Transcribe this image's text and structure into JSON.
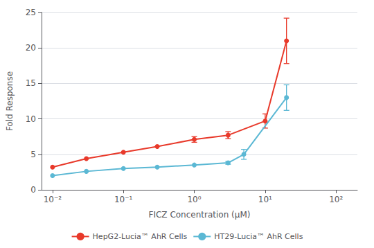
{
  "chart_data": {
    "type": "line",
    "x_label": "FICZ Concentration (μM)",
    "y_label": "Fold Response",
    "log": "x",
    "xlim": [
      0.007,
      200
    ],
    "xticks": [
      {
        "value": 0.01,
        "label": "10⁻²"
      },
      {
        "value": 0.1,
        "label": "10⁻¹"
      },
      {
        "value": 1,
        "label": "10⁰"
      },
      {
        "value": 10,
        "label": "10¹"
      },
      {
        "value": 100,
        "label": "10²"
      }
    ],
    "ylim": [
      0,
      25
    ],
    "yticks": [
      0,
      5,
      10,
      15,
      20,
      25
    ],
    "grid": true,
    "legend": "bottom",
    "marker": "circle",
    "series": [
      {
        "name": "HepG2-Lucia™ AhR Cells",
        "color": "#e8392a",
        "x": [
          0.01,
          0.03,
          0.1,
          0.3,
          1.0,
          3.0,
          10.0,
          20.0
        ],
        "values": [
          3.2,
          4.4,
          5.3,
          6.1,
          7.1,
          7.7,
          9.7,
          21.0
        ],
        "yerr": [
          0.0,
          0.0,
          0.0,
          0.0,
          0.4,
          0.5,
          1.0,
          3.2
        ]
      },
      {
        "name": "HT29-Lucia™ AhR Cells",
        "color": "#5bb8d4",
        "x": [
          0.01,
          0.03,
          0.1,
          0.3,
          1.0,
          3.0,
          5.0,
          20.0
        ],
        "values": [
          2.0,
          2.6,
          3.0,
          3.2,
          3.5,
          3.8,
          5.0,
          13.0
        ],
        "yerr": [
          0.0,
          0.0,
          0.0,
          0.0,
          0.0,
          0.2,
          0.7,
          1.8
        ]
      }
    ]
  }
}
